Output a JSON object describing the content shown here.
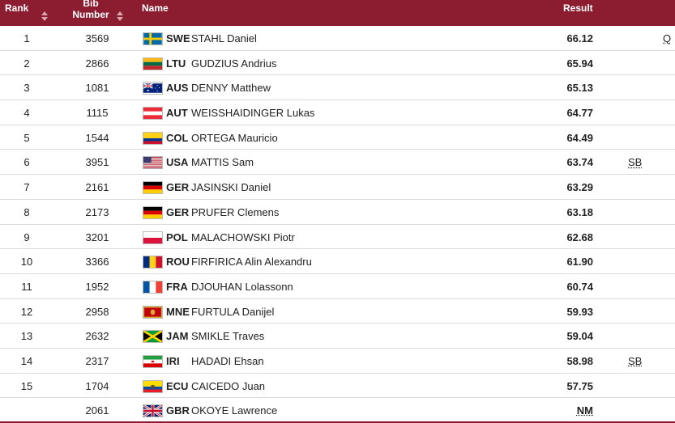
{
  "header": {
    "rank": "Rank",
    "bib_line1": "Bib",
    "bib_line2": "Number",
    "name": "Name",
    "result": "Result"
  },
  "rows": [
    {
      "rank": "1",
      "bib": "3569",
      "country": "SWE",
      "name": "STAHL Daniel",
      "result": "66.12",
      "note": "Q",
      "flag": "swe"
    },
    {
      "rank": "2",
      "bib": "2866",
      "country": "LTU",
      "name": "GUDZIUS Andrius",
      "result": "65.94",
      "note": "",
      "flag": "ltu"
    },
    {
      "rank": "3",
      "bib": "1081",
      "country": "AUS",
      "name": "DENNY Matthew",
      "result": "65.13",
      "note": "",
      "flag": "aus"
    },
    {
      "rank": "4",
      "bib": "1115",
      "country": "AUT",
      "name": "WEISSHAIDINGER Lukas",
      "result": "64.77",
      "note": "",
      "flag": "aut"
    },
    {
      "rank": "5",
      "bib": "1544",
      "country": "COL",
      "name": "ORTEGA Mauricio",
      "result": "64.49",
      "note": "",
      "flag": "col"
    },
    {
      "rank": "6",
      "bib": "3951",
      "country": "USA",
      "name": "MATTIS Sam",
      "result": "63.74",
      "note": "SB",
      "flag": "usa"
    },
    {
      "rank": "7",
      "bib": "2161",
      "country": "GER",
      "name": "JASINSKI Daniel",
      "result": "63.29",
      "note": "",
      "flag": "ger"
    },
    {
      "rank": "8",
      "bib": "2173",
      "country": "GER",
      "name": "PRUFER Clemens",
      "result": "63.18",
      "note": "",
      "flag": "ger"
    },
    {
      "rank": "9",
      "bib": "3201",
      "country": "POL",
      "name": "MALACHOWSKI Piotr",
      "result": "62.68",
      "note": "",
      "flag": "pol"
    },
    {
      "rank": "10",
      "bib": "3366",
      "country": "ROU",
      "name": "FIRFIRICA Alin Alexandru",
      "result": "61.90",
      "note": "",
      "flag": "rou"
    },
    {
      "rank": "11",
      "bib": "1952",
      "country": "FRA",
      "name": "DJOUHAN Lolassonn",
      "result": "60.74",
      "note": "",
      "flag": "fra"
    },
    {
      "rank": "12",
      "bib": "2958",
      "country": "MNE",
      "name": "FURTULA Danijel",
      "result": "59.93",
      "note": "",
      "flag": "mne"
    },
    {
      "rank": "13",
      "bib": "2632",
      "country": "JAM",
      "name": "SMIKLE Traves",
      "result": "59.04",
      "note": "",
      "flag": "jam"
    },
    {
      "rank": "14",
      "bib": "2317",
      "country": "IRI",
      "name": "HADADI Ehsan",
      "result": "58.98",
      "note": "SB",
      "flag": "iri"
    },
    {
      "rank": "15",
      "bib": "1704",
      "country": "ECU",
      "name": "CAICEDO Juan",
      "result": "57.75",
      "note": "",
      "flag": "ecu"
    },
    {
      "rank": "",
      "bib": "2061",
      "country": "GBR",
      "name": "OKOYE Lawrence",
      "result": "NM",
      "note": "",
      "flag": "gbr"
    }
  ],
  "colors": {
    "header_bg": "#8c1d31",
    "header_text": "#ffffff"
  }
}
